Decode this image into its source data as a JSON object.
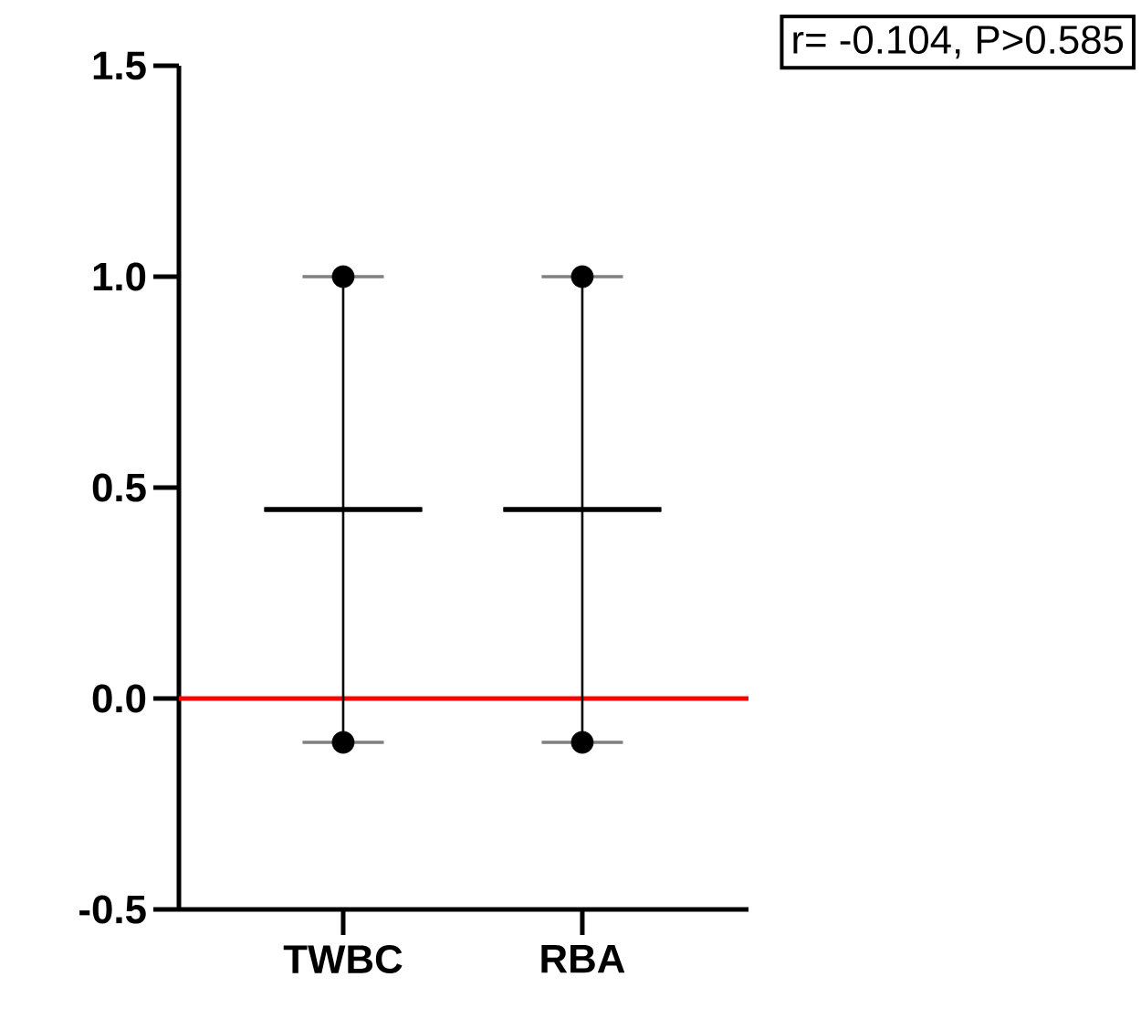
{
  "chart_data": {
    "type": "box",
    "categories": [
      "TWBC",
      "RBA"
    ],
    "ylim": [
      -0.5,
      1.5
    ],
    "yticks": [
      {
        "value": -0.5,
        "label": "-0.5"
      },
      {
        "value": 0,
        "label": "0.0"
      },
      {
        "value": 0.5,
        "label": "0.5"
      },
      {
        "value": 1,
        "label": "1.0"
      },
      {
        "value": 1.5,
        "label": "1.5"
      }
    ],
    "series": [
      {
        "color": "#000000",
        "boxes": [
          {
            "low": -0.104,
            "q1": 0.448,
            "median": 0.448,
            "q3": 0.448,
            "high": 1.0
          },
          {
            "low": -0.104,
            "q1": 0.448,
            "median": 0.448,
            "q3": 0.448,
            "high": 1.0
          }
        ]
      },
      {
        "type": "scatter",
        "color": "#000000",
        "values": [
          1.0,
          1.0
        ]
      },
      {
        "type": "scatter",
        "color": "#000000",
        "values": [
          -0.104,
          -0.104
        ]
      }
    ],
    "ref_lines": [
      {
        "axis": "y",
        "value": 0,
        "color": "#ff0000"
      }
    ],
    "annotations": [
      "r= -0.104, P>0.585"
    ]
  }
}
